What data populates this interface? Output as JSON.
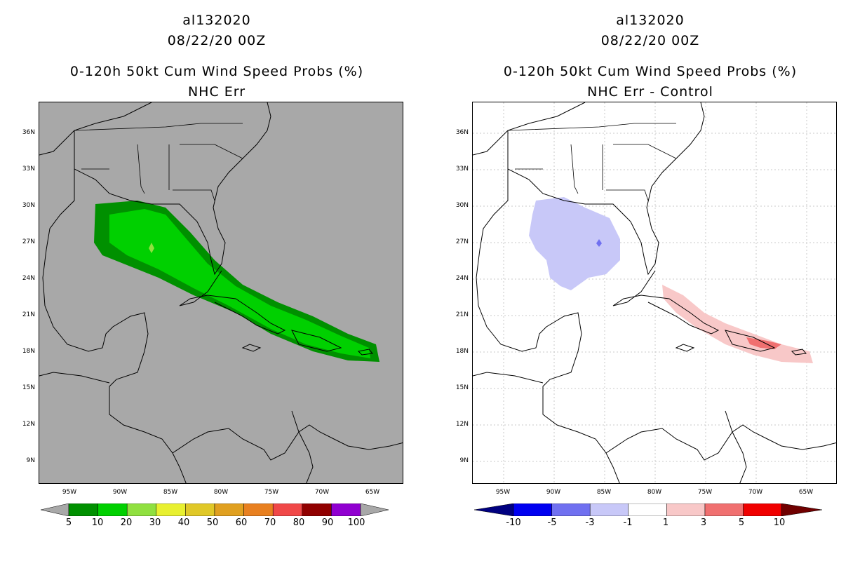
{
  "left": {
    "storm_id": "al132020",
    "datetime": "08/22/20 00Z",
    "product": "0-120h 50kt Cum Wind Speed Probs (%)",
    "subtitle": "NHC Err",
    "colorbar": {
      "labels": [
        "5",
        "10",
        "20",
        "30",
        "40",
        "50",
        "60",
        "70",
        "80",
        "90",
        "100"
      ],
      "colors": [
        "#009000",
        "#00d000",
        "#90e040",
        "#e8f030",
        "#e0c828",
        "#e0a020",
        "#e88020",
        "#f04848",
        "#900000",
        "#9000d0"
      ]
    }
  },
  "right": {
    "storm_id": "al132020",
    "datetime": "08/22/20 00Z",
    "product": "0-120h 50kt Cum Wind Speed Probs (%)",
    "subtitle": "NHC Err - Control",
    "colorbar": {
      "labels": [
        "-10",
        "-5",
        "-3",
        "-1",
        "1",
        "3",
        "5",
        "10"
      ],
      "colors": [
        "#0000c8",
        "#0000f0",
        "#7070f0",
        "#c8c8f8",
        "#ffffff",
        "#f8c8c8",
        "#f07070",
        "#f00000",
        "#900000"
      ],
      "low_end_color": "#000080"
    }
  },
  "axes": {
    "lat_labels": [
      "36N",
      "33N",
      "30N",
      "27N",
      "24N",
      "21N",
      "18N",
      "15N",
      "12N",
      "9N"
    ],
    "lon_labels": [
      "95W",
      "90W",
      "85W",
      "80W",
      "75W",
      "70W",
      "65W"
    ]
  },
  "colors": {
    "land_ocean_bg": "#a8a8a8",
    "grid": "#c8c8c8"
  }
}
